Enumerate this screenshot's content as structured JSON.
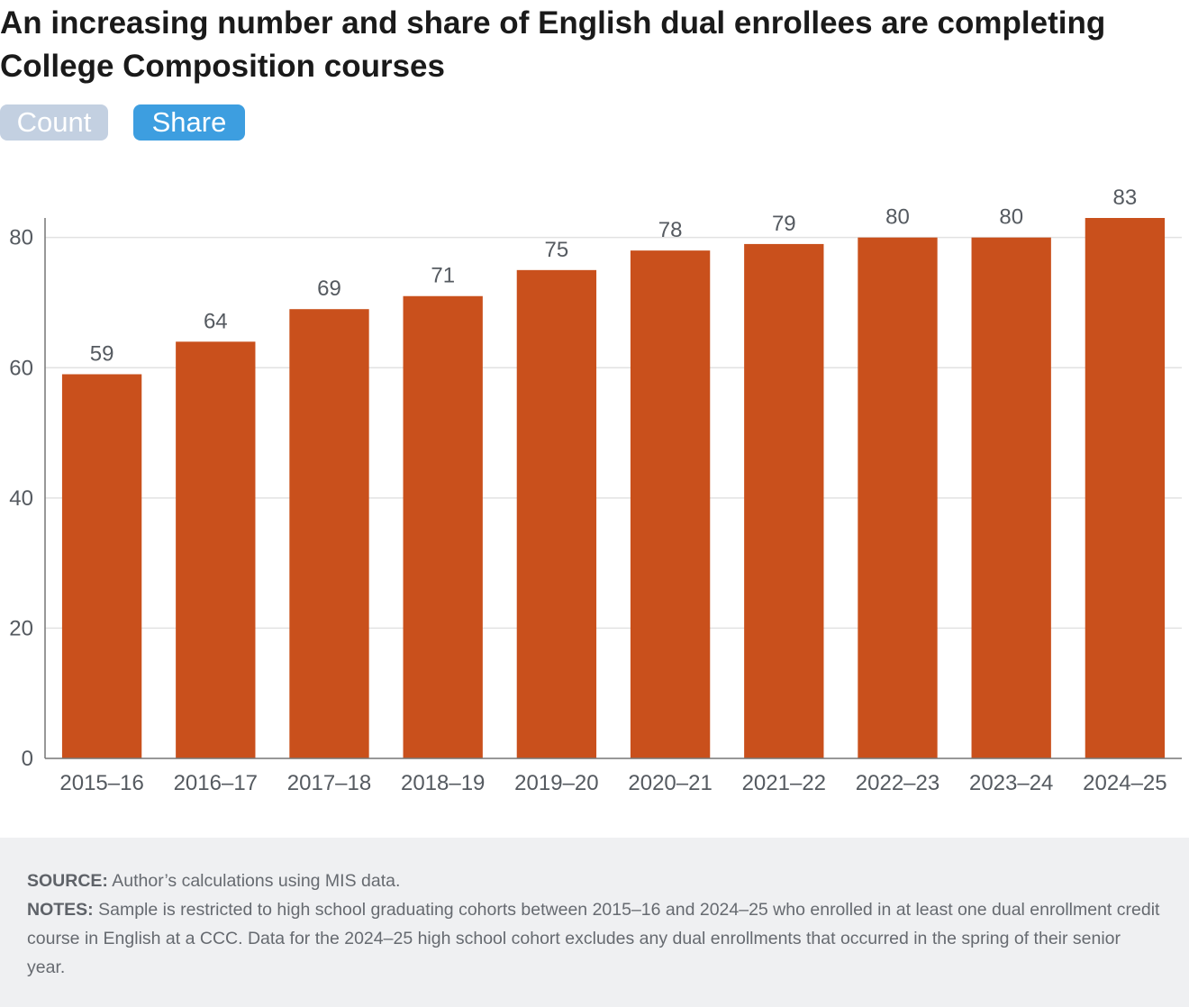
{
  "header": {
    "title": "An increasing number and share of English dual enrollees are completing College Composition courses"
  },
  "toggle": {
    "count_label": "Count",
    "share_label": "Share",
    "selected": "Share"
  },
  "colors": {
    "bar": "#c9501c",
    "toggle_active": "#3d9ee0",
    "toggle_inactive": "#c3d0e1"
  },
  "chart_data": {
    "type": "bar",
    "categories": [
      "2015–16",
      "2016–17",
      "2017–18",
      "2018–19",
      "2019–20",
      "2020–21",
      "2021–22",
      "2022–23",
      "2023–24",
      "2024–25"
    ],
    "values": [
      59,
      64,
      69,
      71,
      75,
      78,
      79,
      80,
      80,
      83
    ],
    "ylim": [
      0,
      83
    ],
    "yticks": [
      0,
      20,
      40,
      60,
      80
    ],
    "grid": true,
    "data_labels": true,
    "legend": "none"
  },
  "footer": {
    "source_label": "SOURCE:",
    "source_text": "Author’s calculations using MIS data.",
    "notes_label": "NOTES:",
    "notes_text": "Sample is restricted to high school graduating cohorts between 2015–16 and 2024–25 who enrolled in at least one dual enrollment credit course in English at a CCC. Data for the 2024–25 high school cohort excludes any dual enrollments that occurred in the spring of their senior year."
  }
}
